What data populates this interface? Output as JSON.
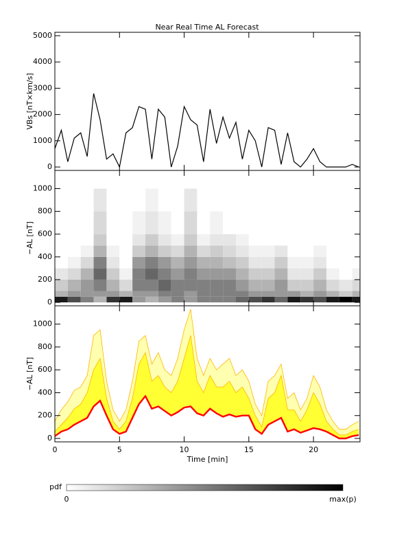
{
  "chart_data": [
    {
      "type": "line",
      "title": "Near Real Time AL Forecast",
      "ylabel": "VBs [nT×km/s]",
      "xlim": [
        0,
        23.6
      ],
      "xticks": [
        0,
        5,
        10,
        15,
        20
      ],
      "xticklabels": false,
      "ylim": [
        -130,
        5130
      ],
      "yticks": [
        0,
        1000,
        2000,
        3000,
        4000,
        5000
      ],
      "x": [
        0,
        0.5,
        1,
        1.5,
        2,
        2.5,
        3,
        3.5,
        4,
        4.5,
        5,
        5.5,
        6,
        6.5,
        7,
        7.5,
        8,
        8.5,
        9,
        9.5,
        10,
        10.5,
        11,
        11.5,
        12,
        12.5,
        13,
        13.5,
        14,
        14.5,
        15,
        15.5,
        16,
        16.5,
        17,
        17.5,
        18,
        18.5,
        19,
        19.5,
        20,
        20.5,
        21,
        21.5,
        22,
        22.5,
        23,
        23.5
      ],
      "series": [
        {
          "color": "#000000",
          "values": [
            700,
            1400,
            200,
            1100,
            1300,
            400,
            2800,
            1800,
            300,
            500,
            0,
            1300,
            1500,
            2300,
            2200,
            300,
            2200,
            1900,
            0,
            800,
            2300,
            1800,
            1600,
            200,
            2200,
            900,
            1900,
            1100,
            1700,
            300,
            1400,
            1000,
            0,
            1500,
            1400,
            100,
            1300,
            200,
            0,
            300,
            700,
            200,
            0,
            0,
            0,
            0,
            100,
            0
          ]
        }
      ]
    },
    {
      "type": "heatmap",
      "ylabel": "−AL [nT]",
      "xlim": [
        0,
        23.6
      ],
      "xticks": [
        0,
        5,
        10,
        15,
        20
      ],
      "xticklabels": false,
      "ylim": [
        -30,
        1160
      ],
      "yticks": [
        0,
        200,
        400,
        600,
        800,
        1000
      ],
      "xbins": [
        0,
        1,
        2,
        3,
        4,
        5,
        6,
        7,
        8,
        9,
        10,
        11,
        12,
        13,
        14,
        15,
        16,
        17,
        18,
        19,
        20,
        21,
        22,
        23,
        24
      ],
      "ybins": [
        0,
        50,
        100,
        200,
        300,
        400,
        500,
        600,
        800,
        1000
      ],
      "values": [
        [
          0.9,
          0.3,
          0.2,
          0.1,
          0,
          0,
          0,
          0,
          0
        ],
        [
          0.7,
          0.4,
          0.3,
          0.15,
          0.05,
          0,
          0,
          0,
          0
        ],
        [
          0.5,
          0.4,
          0.4,
          0.3,
          0.15,
          0.05,
          0,
          0,
          0
        ],
        [
          0.3,
          0.4,
          0.5,
          0.6,
          0.5,
          0.3,
          0.2,
          0.15,
          0.1
        ],
        [
          0.8,
          0.4,
          0.3,
          0.2,
          0.1,
          0.05,
          0,
          0,
          0
        ],
        [
          0.9,
          0.3,
          0.15,
          0.05,
          0,
          0,
          0,
          0,
          0
        ],
        [
          0.4,
          0.4,
          0.5,
          0.5,
          0.4,
          0.2,
          0.1,
          0.05,
          0
        ],
        [
          0.3,
          0.4,
          0.5,
          0.6,
          0.5,
          0.3,
          0.2,
          0.1,
          0.05
        ],
        [
          0.4,
          0.5,
          0.6,
          0.5,
          0.4,
          0.2,
          0.1,
          0.05,
          0
        ],
        [
          0.5,
          0.5,
          0.5,
          0.4,
          0.3,
          0.15,
          0.05,
          0,
          0
        ],
        [
          0.4,
          0.4,
          0.5,
          0.5,
          0.4,
          0.3,
          0.2,
          0.15,
          0.1
        ],
        [
          0.5,
          0.5,
          0.5,
          0.4,
          0.3,
          0.15,
          0.05,
          0,
          0
        ],
        [
          0.5,
          0.5,
          0.5,
          0.4,
          0.3,
          0.2,
          0.1,
          0.05,
          0
        ],
        [
          0.5,
          0.5,
          0.5,
          0.4,
          0.25,
          0.15,
          0.1,
          0,
          0
        ],
        [
          0.6,
          0.5,
          0.4,
          0.3,
          0.2,
          0.1,
          0.05,
          0,
          0
        ],
        [
          0.7,
          0.4,
          0.3,
          0.2,
          0.1,
          0.05,
          0,
          0,
          0
        ],
        [
          0.8,
          0.4,
          0.3,
          0.2,
          0.1,
          0.05,
          0,
          0,
          0
        ],
        [
          0.6,
          0.4,
          0.4,
          0.3,
          0.2,
          0.1,
          0,
          0,
          0
        ],
        [
          0.9,
          0.4,
          0.2,
          0.1,
          0.05,
          0,
          0,
          0,
          0
        ],
        [
          0.8,
          0.3,
          0.2,
          0.1,
          0.05,
          0,
          0,
          0,
          0
        ],
        [
          0.7,
          0.4,
          0.3,
          0.2,
          0.1,
          0.05,
          0,
          0,
          0
        ],
        [
          0.9,
          0.3,
          0.15,
          0.05,
          0,
          0,
          0,
          0,
          0
        ],
        [
          1,
          0.2,
          0.1,
          0,
          0,
          0,
          0,
          0,
          0
        ],
        [
          0.9,
          0.3,
          0.15,
          0.05,
          0,
          0,
          0,
          0,
          0
        ]
      ],
      "colorbar": {
        "label": "pdf",
        "min_label": "0",
        "max_label": "max(p)"
      }
    },
    {
      "type": "band",
      "ylabel": "−AL [nT]",
      "xlabel": "Time [min]",
      "xlim": [
        0,
        23.6
      ],
      "xticks": [
        0,
        5,
        10,
        15,
        20
      ],
      "xticklabels": true,
      "ylim": [
        -30,
        1160
      ],
      "yticks": [
        0,
        200,
        400,
        600,
        800,
        1000
      ],
      "x": [
        0,
        0.5,
        1,
        1.5,
        2,
        2.5,
        3,
        3.5,
        4,
        4.5,
        5,
        5.5,
        6,
        6.5,
        7,
        7.5,
        8,
        8.5,
        9,
        9.5,
        10,
        10.5,
        11,
        11.5,
        12,
        12.5,
        13,
        13.5,
        14,
        14.5,
        15,
        15.5,
        16,
        16.5,
        17,
        17.5,
        18,
        18.5,
        19,
        19.5,
        20,
        20.5,
        21,
        21.5,
        22,
        22.5,
        23,
        23.5
      ],
      "series": [
        {
          "color": "#ffffb0",
          "edge": "#ffb300",
          "values": [
            150,
            250,
            320,
            420,
            450,
            550,
            900,
            950,
            500,
            250,
            150,
            250,
            500,
            850,
            900,
            650,
            750,
            600,
            550,
            700,
            950,
            1130,
            700,
            550,
            700,
            600,
            650,
            700,
            550,
            600,
            500,
            300,
            200,
            500,
            550,
            650,
            350,
            400,
            250,
            350,
            550,
            450,
            250,
            150,
            80,
            80,
            120,
            150
          ]
        },
        {
          "color": "#ffff33",
          "edge": "#ffb300",
          "values": [
            60,
            120,
            180,
            260,
            300,
            400,
            600,
            700,
            350,
            150,
            80,
            150,
            350,
            650,
            750,
            500,
            550,
            450,
            400,
            500,
            700,
            900,
            500,
            400,
            550,
            450,
            450,
            500,
            400,
            450,
            350,
            200,
            100,
            350,
            400,
            550,
            250,
            250,
            150,
            250,
            400,
            300,
            150,
            80,
            30,
            30,
            60,
            80
          ]
        },
        {
          "color": "#ff0000",
          "values": [
            20,
            60,
            80,
            120,
            150,
            180,
            280,
            330,
            200,
            80,
            40,
            60,
            180,
            300,
            370,
            260,
            280,
            240,
            200,
            230,
            270,
            280,
            220,
            200,
            260,
            220,
            190,
            210,
            190,
            200,
            200,
            80,
            40,
            120,
            150,
            180,
            60,
            80,
            50,
            70,
            90,
            80,
            60,
            30,
            0,
            0,
            20,
            30
          ]
        }
      ]
    }
  ]
}
